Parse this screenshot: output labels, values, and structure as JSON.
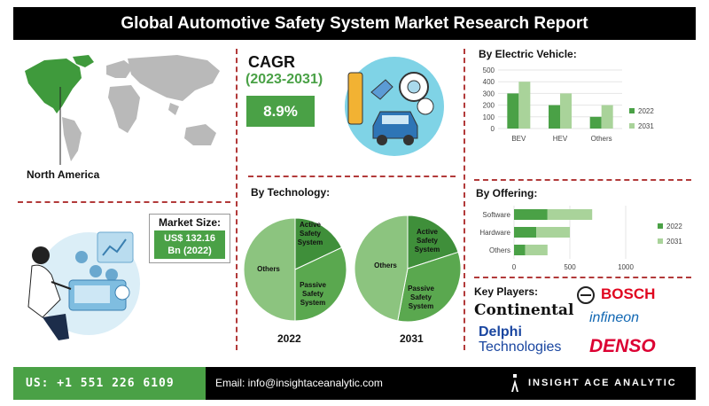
{
  "header": {
    "title": "Global Automotive Safety System Market Research Report"
  },
  "region": {
    "label": "North America"
  },
  "market_size": {
    "title": "Market Size:",
    "value_line1": "US$ 132.16",
    "value_line2": "Bn (2022)"
  },
  "cagr": {
    "label": "CAGR",
    "period": "(2023-2031)",
    "value": "8.9%"
  },
  "by_technology": {
    "title": "By Technology:"
  },
  "by_ev": {
    "title": "By Electric Vehicle:"
  },
  "by_offering": {
    "title": "By Offering:"
  },
  "key_players": {
    "title": "Key Players:",
    "logos": [
      "Continental",
      "BOSCH",
      "infineon",
      "Delphi",
      "Technologies",
      "DENSO"
    ]
  },
  "footer": {
    "phone": "US: +1 551 226 6109",
    "email": "Email: info@insightaceanalytic.com",
    "brand": "INSIGHT ACE ANALYTIC"
  },
  "colors": {
    "green_dark": "#4aa146",
    "green_light": "#a9d39a",
    "pie_dark": "#3f8f3a",
    "pie_mid": "#5aa84f",
    "pie_light": "#8cc47f",
    "dash": "#b23a3a"
  },
  "chart_data": [
    {
      "type": "pie",
      "title": "By Technology: 2022",
      "labels": [
        "Active Safety System",
        "Passive Safety System",
        "Others"
      ],
      "values": [
        18,
        32,
        50
      ],
      "year_label": "2022"
    },
    {
      "type": "pie",
      "title": "By Technology: 2031",
      "labels": [
        "Active Safety System",
        "Passive Safety System",
        "Others"
      ],
      "values": [
        20,
        33,
        47
      ],
      "year_label": "2031"
    },
    {
      "type": "bar",
      "title": "By Electric Vehicle:",
      "categories": [
        "BEV",
        "HEV",
        "Others"
      ],
      "series": [
        {
          "name": "2022",
          "values": [
            300,
            200,
            100
          ]
        },
        {
          "name": "2031",
          "values": [
            400,
            300,
            200
          ]
        }
      ],
      "ylim": [
        0,
        500
      ],
      "yticks": [
        0,
        100,
        200,
        300,
        400,
        500
      ],
      "legend": "right"
    },
    {
      "type": "bar",
      "orientation": "horizontal",
      "stacked": true,
      "title": "By Offering:",
      "categories": [
        "Software",
        "Hardware",
        "Others"
      ],
      "series": [
        {
          "name": "2022",
          "values": [
            300,
            200,
            100
          ]
        },
        {
          "name": "2031",
          "values": [
            400,
            300,
            200
          ]
        }
      ],
      "xlim": [
        0,
        1000
      ],
      "xticks": [
        0,
        500,
        1000
      ],
      "legend": "right"
    }
  ]
}
